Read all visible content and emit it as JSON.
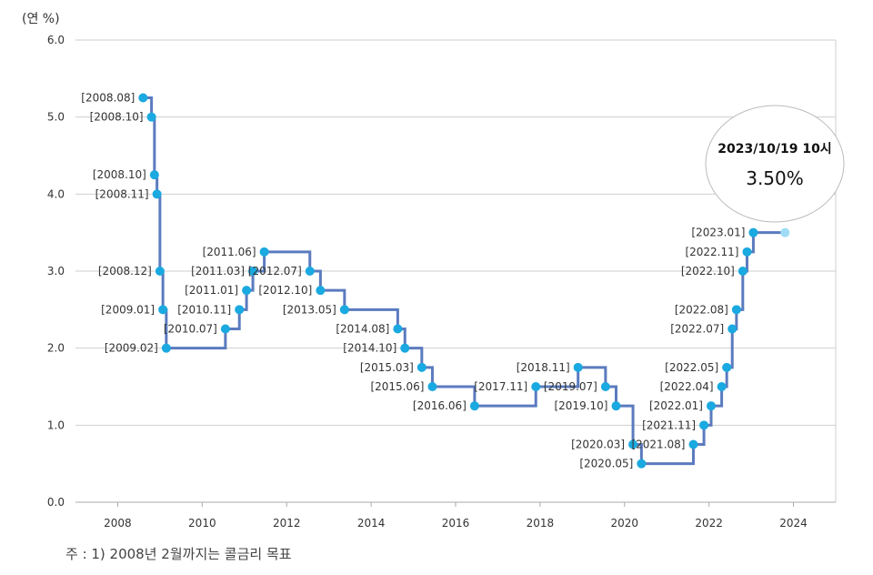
{
  "chart_data": {
    "type": "line",
    "step": true,
    "y_unit_label": "(연 %)",
    "ylim": [
      0,
      6
    ],
    "y_ticks": [
      "0.0",
      "1.0",
      "2.0",
      "3.0",
      "4.0",
      "5.0",
      "6.0"
    ],
    "xlim": [
      2007.0,
      2025.0
    ],
    "x_ticks": [
      "2008",
      "2010",
      "2012",
      "2014",
      "2016",
      "2018",
      "2020",
      "2022",
      "2024"
    ],
    "grid": "horizontal",
    "line_color": "#5b7bbf",
    "point_color": "#1aa9e0",
    "current_point_color": "#9fdcf5",
    "points": [
      {
        "label": "[2008.08]",
        "x": 2008.6,
        "y": 5.25
      },
      {
        "label": "[2008.10]",
        "x": 2008.8,
        "y": 5.0
      },
      {
        "label": "[2008.10]",
        "x": 2008.87,
        "y": 4.25
      },
      {
        "label": "[2008.11]",
        "x": 2008.93,
        "y": 4.0
      },
      {
        "label": "[2008.12]",
        "x": 2009.0,
        "y": 3.0
      },
      {
        "label": "[2009.01]",
        "x": 2009.07,
        "y": 2.5
      },
      {
        "label": "[2009.02]",
        "x": 2009.15,
        "y": 2.0
      },
      {
        "label": "[2010.07]",
        "x": 2010.55,
        "y": 2.25
      },
      {
        "label": "[2010.11]",
        "x": 2010.88,
        "y": 2.5
      },
      {
        "label": "[2011.01]",
        "x": 2011.05,
        "y": 2.75
      },
      {
        "label": "[2011.03]",
        "x": 2011.2,
        "y": 3.0
      },
      {
        "label": "[2011.06]",
        "x": 2011.47,
        "y": 3.25
      },
      {
        "label": "[2012.07]",
        "x": 2012.55,
        "y": 3.0
      },
      {
        "label": "[2012.10]",
        "x": 2012.8,
        "y": 2.75
      },
      {
        "label": "[2013.05]",
        "x": 2013.37,
        "y": 2.5
      },
      {
        "label": "[2014.08]",
        "x": 2014.63,
        "y": 2.25
      },
      {
        "label": "[2014.10]",
        "x": 2014.8,
        "y": 2.0
      },
      {
        "label": "[2015.03]",
        "x": 2015.2,
        "y": 1.75
      },
      {
        "label": "[2015.06]",
        "x": 2015.45,
        "y": 1.5
      },
      {
        "label": "[2016.06]",
        "x": 2016.45,
        "y": 1.25
      },
      {
        "label": "[2017.11]",
        "x": 2017.9,
        "y": 1.5
      },
      {
        "label": "[2018.11]",
        "x": 2018.9,
        "y": 1.75
      },
      {
        "label": "[2019.07]",
        "x": 2019.55,
        "y": 1.5
      },
      {
        "label": "[2019.10]",
        "x": 2019.8,
        "y": 1.25
      },
      {
        "label": "[2020.03]",
        "x": 2020.2,
        "y": 0.75
      },
      {
        "label": "[2020.05]",
        "x": 2020.4,
        "y": 0.5
      },
      {
        "label": "[2021.08]",
        "x": 2021.63,
        "y": 0.75
      },
      {
        "label": "[2021.11]",
        "x": 2021.88,
        "y": 1.0
      },
      {
        "label": "[2022.01]",
        "x": 2022.05,
        "y": 1.25
      },
      {
        "label": "[2022.04]",
        "x": 2022.3,
        "y": 1.5
      },
      {
        "label": "[2022.05]",
        "x": 2022.42,
        "y": 1.75
      },
      {
        "label": "[2022.07]",
        "x": 2022.55,
        "y": 2.25
      },
      {
        "label": "[2022.08]",
        "x": 2022.65,
        "y": 2.5
      },
      {
        "label": "[2022.10]",
        "x": 2022.8,
        "y": 3.0
      },
      {
        "label": "[2022.11]",
        "x": 2022.9,
        "y": 3.25
      },
      {
        "label": "[2023.01]",
        "x": 2023.05,
        "y": 3.5
      }
    ],
    "current": {
      "x": 2023.8,
      "y": 3.5,
      "date": "2023/10/19 10시",
      "value": "3.50%"
    }
  },
  "footnote": "주 : 1) 2008년 2월까지는 콜금리 목표"
}
